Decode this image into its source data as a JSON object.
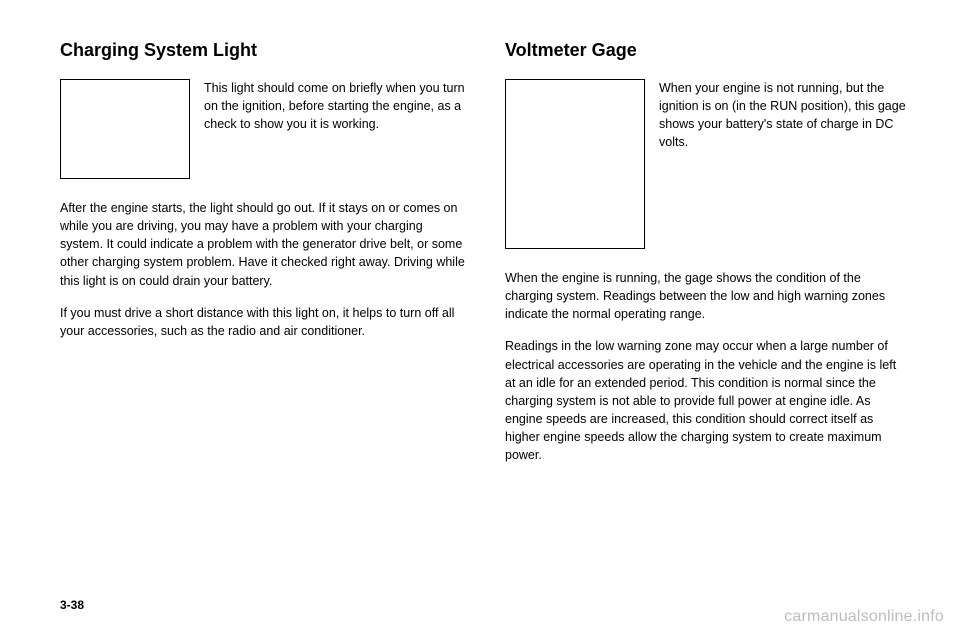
{
  "left": {
    "heading": "Charging System Light",
    "sideText": "This light should come on briefly when you turn on the ignition, before starting the engine, as a check to show you it is working.",
    "para1": "After the engine starts, the light should go out. If it stays on or comes on while you are driving, you may have a problem with your charging system. It could indicate a problem with the generator drive belt, or some other charging system problem. Have it checked right away. Driving while this light is on could drain your battery.",
    "para2": "If you must drive a short distance with this light on, it helps to turn off all your accessories, such as the radio and air conditioner."
  },
  "right": {
    "heading": "Voltmeter Gage",
    "sideText": "When your engine is not running, but the ignition is on (in the RUN position), this gage shows your battery's state of charge in DC volts.",
    "para1": "When the engine is running, the gage shows the condition of the charging system. Readings between the low and high warning zones indicate the normal operating range.",
    "para2": "Readings in the low warning zone may occur when a large number of electrical accessories are operating in the vehicle and the engine is left at an idle for an extended period. This condition is normal since the charging system is not able to provide full power at engine idle. As engine speeds are increased, this condition should correct itself as higher engine speeds allow the charging system to create maximum power."
  },
  "pageNumber": "3-38",
  "watermark": "carmanualsonline.info"
}
